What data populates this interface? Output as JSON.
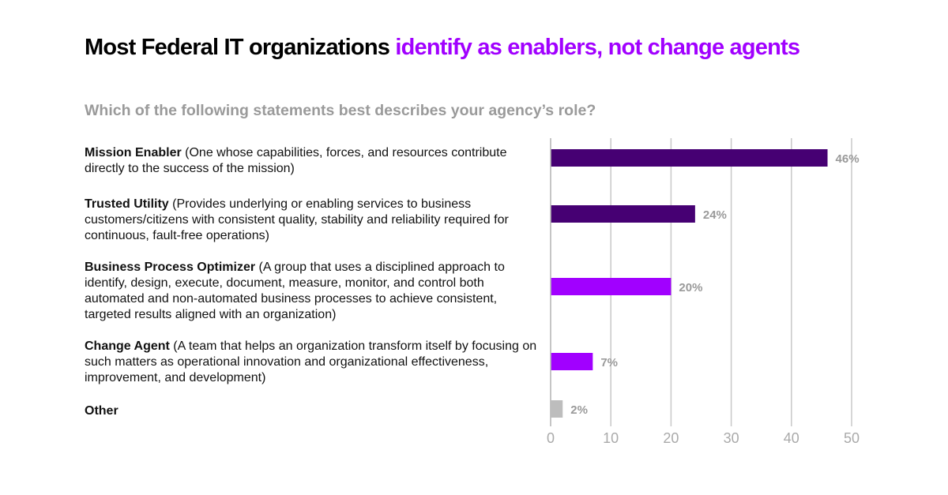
{
  "title": {
    "main": "Most Federal IT organizations ",
    "highlight": "identify as enablers, not change agents"
  },
  "subtitle": "Which of the following statements best describes your agency’s role?",
  "colors": {
    "highlight": "#a100ff",
    "dark_purple": "#460073",
    "purple": "#a100ff",
    "gray": "#bdbdbd",
    "label_gray": "#9a9a9a"
  },
  "chart_data": {
    "type": "bar",
    "orientation": "horizontal",
    "categories": [
      {
        "name": "Mission Enabler",
        "desc": " (One whose capabilities, forces, and resources contribute directly to the success of the mission)"
      },
      {
        "name": "Trusted Utility",
        "desc": " (Provides underlying or enabling services to business customers/citizens with consistent quality, stability and reliability required for continuous, fault-free operations)"
      },
      {
        "name": "Business Process Optimizer",
        "desc": " (A group that uses a disciplined approach to identify, design, execute, document, measure, monitor, and control both automated and non-automated business processes to achieve consistent, targeted results aligned with an organization)"
      },
      {
        "name": "Change Agent",
        "desc": " (A team that helps an organization transform itself by focusing on such matters as operational innovation and organizational effectiveness, improvement, and development)"
      },
      {
        "name": "Other",
        "desc": ""
      }
    ],
    "values": [
      46,
      24,
      20,
      7,
      2
    ],
    "data_labels": [
      "46%",
      "24%",
      "20%",
      "7%",
      "2%"
    ],
    "bar_colors": [
      "#460073",
      "#460073",
      "#a100ff",
      "#a100ff",
      "#bdbdbd"
    ],
    "xlim": [
      0,
      50
    ],
    "xticks": [
      "0",
      "10",
      "20",
      "30",
      "40",
      "50"
    ],
    "grid": true
  }
}
